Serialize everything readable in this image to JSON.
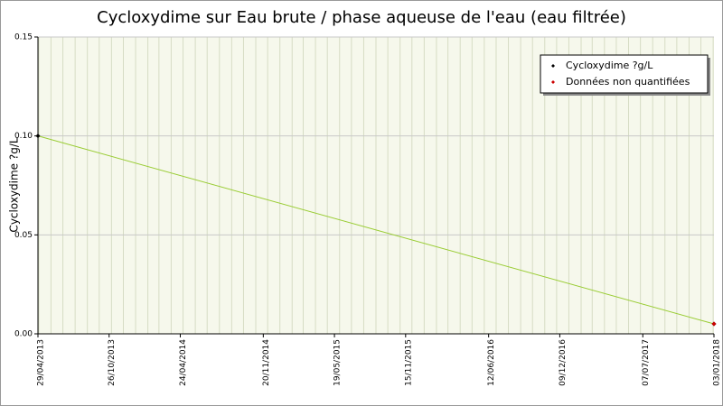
{
  "chart_data": {
    "type": "line",
    "title": "Cycloxydime sur Eau brute / phase aqueuse de l'eau (eau filtrée)",
    "y_label": "Cycloxydime ?g/L",
    "xlim": [
      "29/04/2013",
      "03/01/2018"
    ],
    "xticks": [
      "29/04/2013",
      "26/10/2013",
      "24/04/2014",
      "20/11/2014",
      "19/05/2015",
      "15/11/2015",
      "12/06/2016",
      "09/12/2016",
      "07/07/2017",
      "03/01/2018"
    ],
    "ylim": [
      0,
      0.15
    ],
    "yticks": [
      {
        "value": 0,
        "label": "0.00"
      },
      {
        "value": 0.05,
        "label": "0.05"
      },
      {
        "value": 0.1,
        "label": "0.10"
      },
      {
        "value": 0.15,
        "label": "0.15"
      }
    ],
    "grid": true,
    "legend": "upper right",
    "series": [
      {
        "name": "Cycloxydime ?g/L",
        "color": "#000000",
        "line_color": "#99cc33",
        "x": [
          "29/04/2013",
          "03/01/2018"
        ],
        "values": [
          0.1,
          0.005
        ]
      },
      {
        "name": "Données non quantifiées",
        "color": "#cc0000",
        "x": [
          "03/01/2018"
        ],
        "values": [
          0.005
        ]
      }
    ]
  }
}
